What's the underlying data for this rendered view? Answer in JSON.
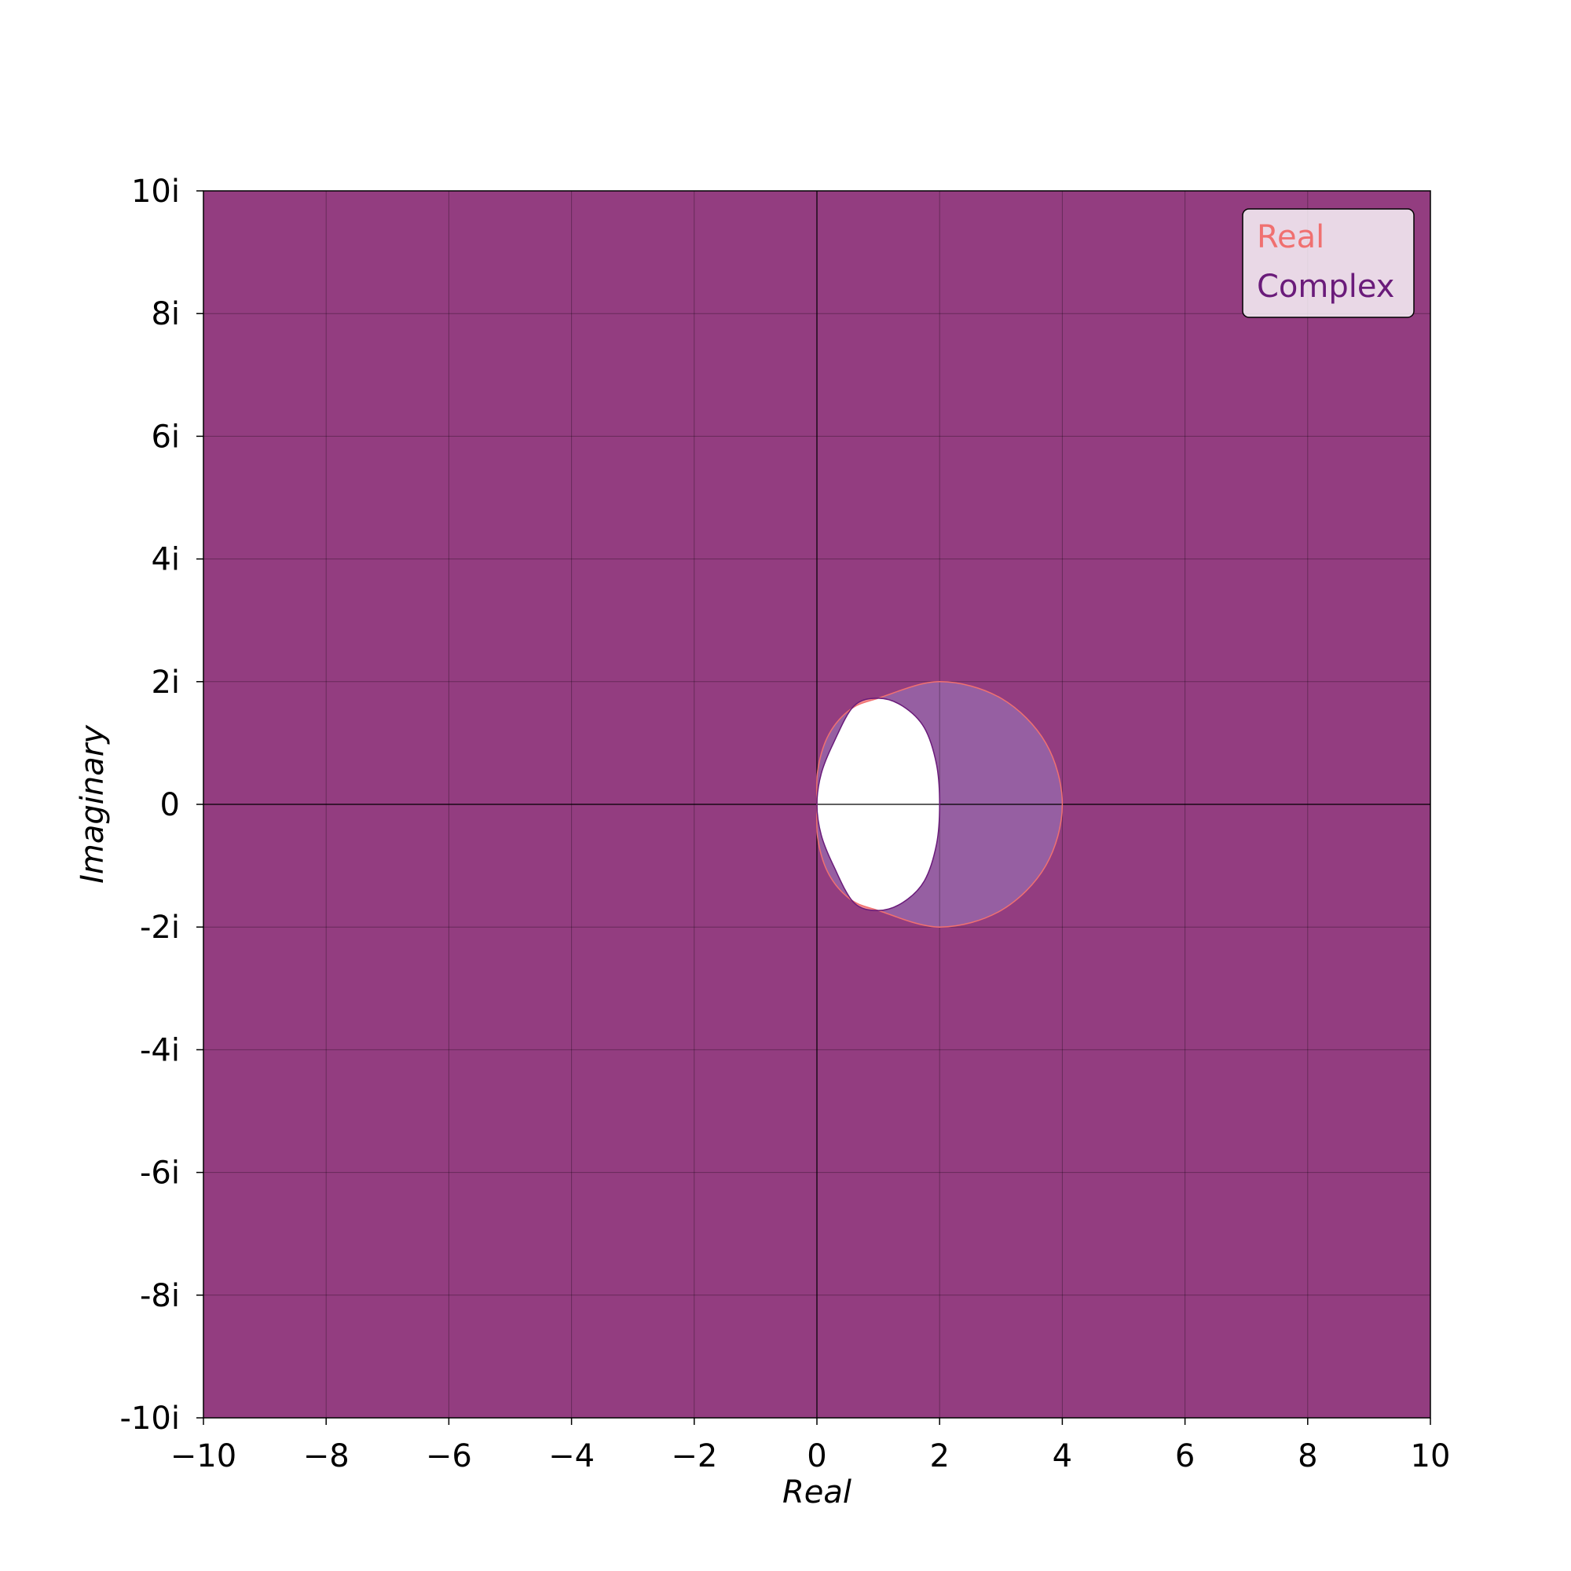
{
  "chart_data": {
    "type": "area",
    "title": "",
    "xlabel": "Real",
    "ylabel": "Imaginary",
    "xlim": [
      -10,
      10
    ],
    "ylim": [
      -10,
      10
    ],
    "grid": true,
    "legend_position": "top-right",
    "x_ticks": [
      {
        "value": -10,
        "label": "−10"
      },
      {
        "value": -8,
        "label": "−8"
      },
      {
        "value": -6,
        "label": "−6"
      },
      {
        "value": -4,
        "label": "−4"
      },
      {
        "value": -2,
        "label": "−2"
      },
      {
        "value": 0,
        "label": "0"
      },
      {
        "value": 2,
        "label": "2"
      },
      {
        "value": 4,
        "label": "4"
      },
      {
        "value": 6,
        "label": "6"
      },
      {
        "value": 8,
        "label": "8"
      },
      {
        "value": 10,
        "label": "10"
      }
    ],
    "y_ticks": [
      {
        "value": 10,
        "label": "10i"
      },
      {
        "value": 8,
        "label": "8i"
      },
      {
        "value": 6,
        "label": "6i"
      },
      {
        "value": 4,
        "label": "4i"
      },
      {
        "value": 2,
        "label": "2i"
      },
      {
        "value": 0,
        "label": "0"
      },
      {
        "value": -2,
        "label": "-2i"
      },
      {
        "value": -4,
        "label": "-4i"
      },
      {
        "value": -6,
        "label": "-6i"
      },
      {
        "value": -8,
        "label": "-8i"
      },
      {
        "value": -10,
        "label": "-10i"
      }
    ],
    "series": [
      {
        "name": "Real",
        "color": "#f07070",
        "region": "exterior",
        "boundary": [
          [
            1.0,
            1.73
          ],
          [
            0.55,
            1.55
          ],
          [
            0.2,
            1.15
          ],
          [
            0.02,
            0.6
          ],
          [
            0.0,
            0.0
          ],
          [
            0.02,
            -0.6
          ],
          [
            0.2,
            -1.15
          ],
          [
            0.55,
            -1.55
          ],
          [
            1.0,
            -1.73
          ],
          [
            2.0,
            -2.0
          ],
          [
            3.0,
            -1.73
          ],
          [
            3.73,
            -1.0
          ],
          [
            4.0,
            0.0
          ],
          [
            3.73,
            1.0
          ],
          [
            3.0,
            1.73
          ],
          [
            2.0,
            2.0
          ]
        ]
      },
      {
        "name": "Complex",
        "color": "#6a1b7a",
        "region": "exterior",
        "boundary": [
          [
            1.0,
            1.73
          ],
          [
            0.6,
            1.6
          ],
          [
            0.27,
            1.0
          ],
          [
            0.07,
            0.5
          ],
          [
            0.0,
            0.0
          ],
          [
            0.07,
            -0.5
          ],
          [
            0.27,
            -1.0
          ],
          [
            0.6,
            -1.6
          ],
          [
            1.0,
            -1.73
          ],
          [
            1.4,
            -1.6
          ],
          [
            1.75,
            -1.25
          ],
          [
            1.95,
            -0.65
          ],
          [
            2.0,
            0.0
          ],
          [
            1.95,
            0.65
          ],
          [
            1.75,
            1.25
          ],
          [
            1.4,
            1.6
          ]
        ]
      }
    ]
  }
}
